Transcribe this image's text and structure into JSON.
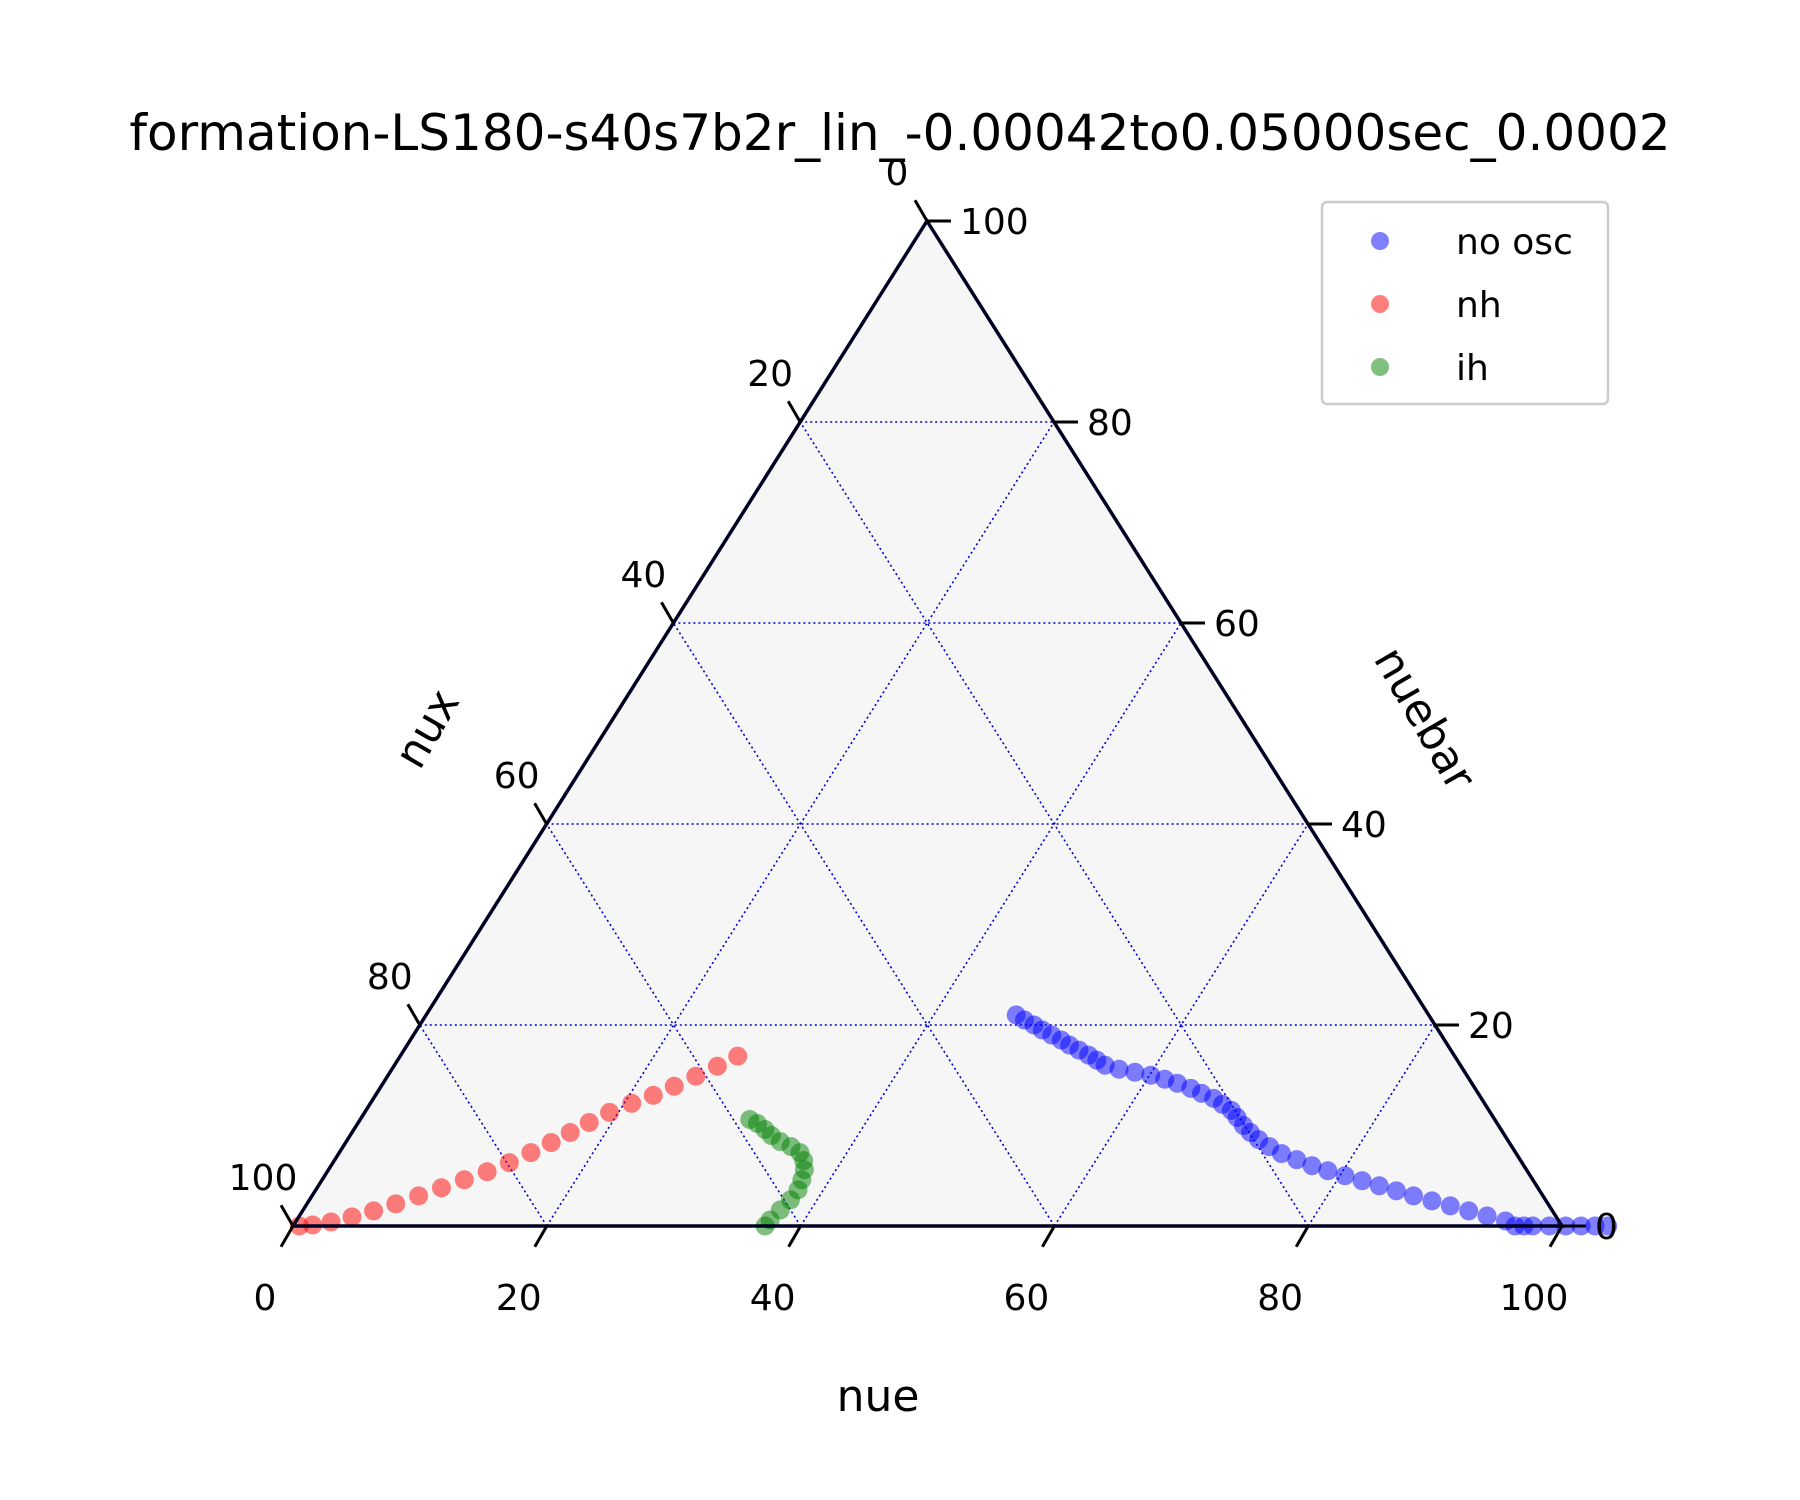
{
  "chart_data": {
    "type": "scatter",
    "subtype": "ternary",
    "title": "formation-LS180-s40s7b2r_lin_-0.00042to0.05000sec_0.0002",
    "axes": {
      "bottom": {
        "label": "nue",
        "ticks": [
          "0",
          "20",
          "40",
          "60",
          "80",
          "100"
        ]
      },
      "left": {
        "label": "nux",
        "ticks": [
          "0",
          "20",
          "40",
          "60",
          "80",
          "100"
        ]
      },
      "right": {
        "label": "nuebar",
        "ticks": [
          "0",
          "20",
          "40",
          "60",
          "80",
          "100"
        ]
      },
      "range": [
        0,
        100
      ],
      "grid": true
    },
    "legend": {
      "position": "top-right"
    },
    "series": [
      {
        "name": "no osc",
        "color": "#0000ff",
        "points": [
          [
            46.5,
            21.0
          ],
          [
            47.4,
            20.5
          ],
          [
            48.4,
            20.0
          ],
          [
            49.3,
            19.5
          ],
          [
            50.3,
            19.0
          ],
          [
            51.3,
            18.5
          ],
          [
            52.2,
            18.0
          ],
          [
            53.2,
            17.5
          ],
          [
            54.2,
            17.0
          ],
          [
            55.1,
            16.5
          ],
          [
            56.0,
            16.0
          ],
          [
            57.3,
            15.6
          ],
          [
            58.7,
            15.3
          ],
          [
            60.1,
            15.0
          ],
          [
            61.4,
            14.6
          ],
          [
            62.6,
            14.2
          ],
          [
            63.9,
            13.7
          ],
          [
            65.0,
            13.2
          ],
          [
            66.2,
            12.7
          ],
          [
            67.2,
            12.1
          ],
          [
            68.2,
            11.5
          ],
          [
            69.0,
            10.8
          ],
          [
            69.9,
            10.0
          ],
          [
            70.8,
            9.3
          ],
          [
            71.8,
            8.6
          ],
          [
            73.0,
            7.9
          ],
          [
            74.3,
            7.2
          ],
          [
            75.8,
            6.6
          ],
          [
            77.3,
            6.0
          ],
          [
            78.8,
            5.5
          ],
          [
            80.4,
            5.0
          ],
          [
            82.0,
            4.5
          ],
          [
            83.6,
            4.0
          ],
          [
            85.2,
            3.5
          ],
          [
            86.8,
            3.0
          ],
          [
            88.5,
            2.5
          ],
          [
            90.2,
            2.0
          ],
          [
            91.9,
            1.5
          ],
          [
            93.6,
            1.0
          ],
          [
            95.3,
            0.5
          ],
          [
            96.3,
            0.0
          ],
          [
            97.0,
            0.0
          ],
          [
            97.7,
            0.0
          ],
          [
            99.0,
            0.0
          ],
          [
            100.3,
            0.0
          ],
          [
            101.5,
            0.0
          ],
          [
            102.6,
            0.0
          ],
          [
            103.6,
            0.0
          ]
        ]
      },
      {
        "name": "nh",
        "color": "#ff0000",
        "points": [
          [
            0.5,
            0.0
          ],
          [
            1.5,
            0.1
          ],
          [
            2.8,
            0.4
          ],
          [
            4.2,
            0.9
          ],
          [
            5.6,
            1.5
          ],
          [
            7.0,
            2.2
          ],
          [
            8.4,
            3.0
          ],
          [
            9.8,
            3.8
          ],
          [
            11.2,
            4.6
          ],
          [
            12.6,
            5.4
          ],
          [
            13.9,
            6.3
          ],
          [
            15.1,
            7.3
          ],
          [
            16.2,
            8.3
          ],
          [
            17.2,
            9.3
          ],
          [
            18.2,
            10.3
          ],
          [
            19.3,
            11.3
          ],
          [
            20.6,
            12.2
          ],
          [
            21.9,
            13.0
          ],
          [
            23.1,
            13.9
          ],
          [
            24.3,
            14.9
          ],
          [
            25.5,
            15.9
          ],
          [
            26.6,
            16.9
          ]
        ]
      },
      {
        "name": "ih",
        "color": "#008000",
        "points": [
          [
            30.7,
            10.6
          ],
          [
            31.5,
            10.2
          ],
          [
            32.4,
            9.6
          ],
          [
            33.2,
            9.0
          ],
          [
            34.2,
            8.4
          ],
          [
            35.3,
            7.9
          ],
          [
            36.3,
            7.3
          ],
          [
            37.0,
            6.5
          ],
          [
            37.5,
            5.6
          ],
          [
            37.8,
            4.6
          ],
          [
            38.0,
            3.6
          ],
          [
            37.9,
            2.6
          ],
          [
            37.6,
            1.6
          ],
          [
            37.3,
            0.6
          ],
          [
            37.2,
            0.0
          ]
        ]
      }
    ]
  }
}
